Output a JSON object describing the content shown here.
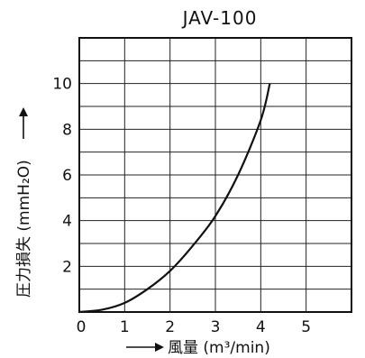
{
  "chart_data": {
    "type": "line",
    "title": "JAV-100",
    "xlabel": "風量 (m³/min)",
    "ylabel": "圧力損失 (mmH₂O)",
    "xlim": [
      0,
      6
    ],
    "ylim": [
      0,
      12
    ],
    "x_ticks": [
      0,
      1,
      2,
      3,
      4,
      5
    ],
    "y_ticks": [
      2,
      4,
      6,
      8,
      10
    ],
    "grid": true,
    "series": [
      {
        "x": [
          0,
          0.5,
          1.0,
          1.5,
          2.0,
          2.5,
          3.0,
          3.5,
          4.0,
          4.2
        ],
        "values": [
          0,
          0.1,
          0.4,
          1.0,
          1.8,
          2.9,
          4.2,
          6.0,
          8.4,
          10.0
        ]
      }
    ]
  },
  "colors": {
    "line": "#111111",
    "grid": "#222222",
    "background": "#ffffff"
  }
}
